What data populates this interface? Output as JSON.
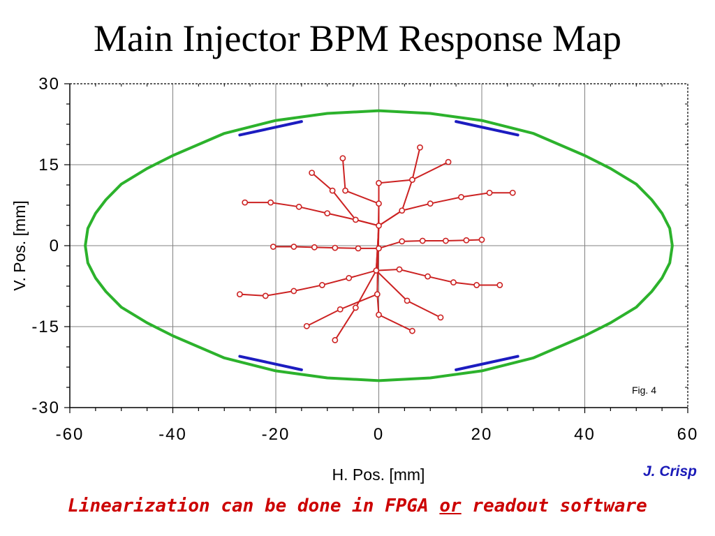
{
  "title": "Main Injector BPM Response Map",
  "caption": {
    "before": "Linearization can be done in FPGA ",
    "emphasis": "or",
    "after": " readout software"
  },
  "author": "J. Crisp",
  "colors": {
    "aperture": "#2cb22c",
    "electrodes": "#1c1cc0",
    "grid_map": "#cc2222",
    "axes": "#000000",
    "gridlines": "#808080"
  },
  "chart_data": {
    "type": "scatter",
    "title": "Main Injector BPM Response Map",
    "xlabel": "H. Pos. [mm]",
    "ylabel": "V. Pos. [mm]",
    "xlim": [
      -60,
      60
    ],
    "ylim": [
      -30,
      30
    ],
    "xticks": [
      "-60",
      "-40",
      "-20",
      "0",
      "20",
      "40",
      "60"
    ],
    "yticks": [
      "30",
      "15",
      "0",
      "-15",
      "-30"
    ],
    "grid": true,
    "annotation": "Fig. 4",
    "aperture": {
      "name": "beam pipe aperture",
      "x": [
        0,
        10,
        20,
        30,
        40,
        45,
        50,
        53,
        55,
        56.5,
        57,
        56.5,
        55,
        53,
        50,
        45,
        40,
        30,
        20,
        10,
        0,
        -10,
        -20,
        -30,
        -40,
        -45,
        -50,
        -53,
        -55,
        -56.5,
        -57,
        -56.5,
        -55,
        -53,
        -50,
        -45,
        -40,
        -30,
        -20,
        -10,
        0
      ],
      "y": [
        25,
        24.5,
        23.2,
        20.8,
        16.7,
        14.3,
        11.4,
        8.5,
        6.0,
        3.2,
        0,
        -3.2,
        -6.0,
        -8.5,
        -11.4,
        -14.3,
        -16.7,
        -20.8,
        -23.2,
        -24.5,
        -25,
        -24.5,
        -23.2,
        -20.8,
        -16.7,
        -14.3,
        -11.4,
        -8.5,
        -6.0,
        -3.2,
        0,
        3.2,
        6.0,
        8.5,
        11.4,
        14.3,
        16.7,
        20.8,
        23.2,
        24.5,
        25
      ]
    },
    "electrodes": [
      {
        "x": [
          -27,
          -15
        ],
        "y": [
          20.5,
          23.0
        ]
      },
      {
        "x": [
          15,
          27
        ],
        "y": [
          23.0,
          20.5
        ]
      },
      {
        "x": [
          -27,
          -15
        ],
        "y": [
          -20.5,
          -23.0
        ]
      },
      {
        "x": [
          15,
          27
        ],
        "y": [
          -23.0,
          -20.5
        ]
      }
    ],
    "response_grid": {
      "rows": [
        [
          [
            -26,
            8
          ],
          [
            -21,
            8
          ],
          [
            -15.5,
            7.2
          ],
          [
            -10,
            6
          ],
          [
            -4.5,
            4.8
          ],
          [
            0,
            3.7
          ],
          [
            4.5,
            6.5
          ],
          [
            10,
            7.8
          ],
          [
            16,
            9
          ],
          [
            21.5,
            9.8
          ],
          [
            26,
            9.8
          ]
        ],
        [
          [
            -20.5,
            -0.2
          ],
          [
            -16.5,
            -0.2
          ],
          [
            -12.5,
            -0.3
          ],
          [
            -8.5,
            -0.4
          ],
          [
            -4,
            -0.5
          ],
          [
            0,
            -0.5
          ],
          [
            4.5,
            0.8
          ],
          [
            8.5,
            0.9
          ],
          [
            13,
            0.9
          ],
          [
            17,
            1.0
          ],
          [
            20,
            1.1
          ]
        ],
        [
          [
            -27,
            -9
          ],
          [
            -22,
            -9.3
          ],
          [
            -16.5,
            -8.4
          ],
          [
            -11,
            -7.3
          ],
          [
            -5.8,
            -6
          ],
          [
            -0.5,
            -4.6
          ],
          [
            4,
            -4.4
          ],
          [
            9.5,
            -5.7
          ],
          [
            14.5,
            -6.8
          ],
          [
            19,
            -7.3
          ],
          [
            23.5,
            -7.3
          ]
        ]
      ],
      "cols": [
        [
          [
            -13,
            13.5
          ],
          [
            -9,
            10.2
          ],
          [
            -4.5,
            4.8
          ],
          [
            0,
            3.7
          ],
          [
            -0.5,
            -4.6
          ],
          [
            -4.5,
            -11.5
          ],
          [
            -8.5,
            -17.5
          ]
        ],
        [
          [
            -7,
            16.2
          ],
          [
            -6.5,
            10.2
          ],
          [
            0,
            7.8
          ],
          [
            0,
            3.7
          ],
          [
            -0.3,
            -9
          ],
          [
            0,
            -12.8
          ],
          [
            6.5,
            -15.8
          ]
        ],
        [
          [
            8,
            18.2
          ],
          [
            6.5,
            12.2
          ],
          [
            0,
            11.6
          ],
          [
            0,
            7.8
          ],
          [
            -0.3,
            -9
          ],
          [
            -7.5,
            -11.8
          ],
          [
            -14,
            -14.9
          ]
        ],
        [
          [
            13.5,
            15.5
          ],
          [
            6.5,
            12.2
          ],
          [
            4.5,
            6.5
          ],
          [
            0,
            3.7
          ],
          [
            -0.5,
            -4.6
          ],
          [
            5.5,
            -10.2
          ],
          [
            12,
            -13.3
          ]
        ]
      ]
    }
  }
}
